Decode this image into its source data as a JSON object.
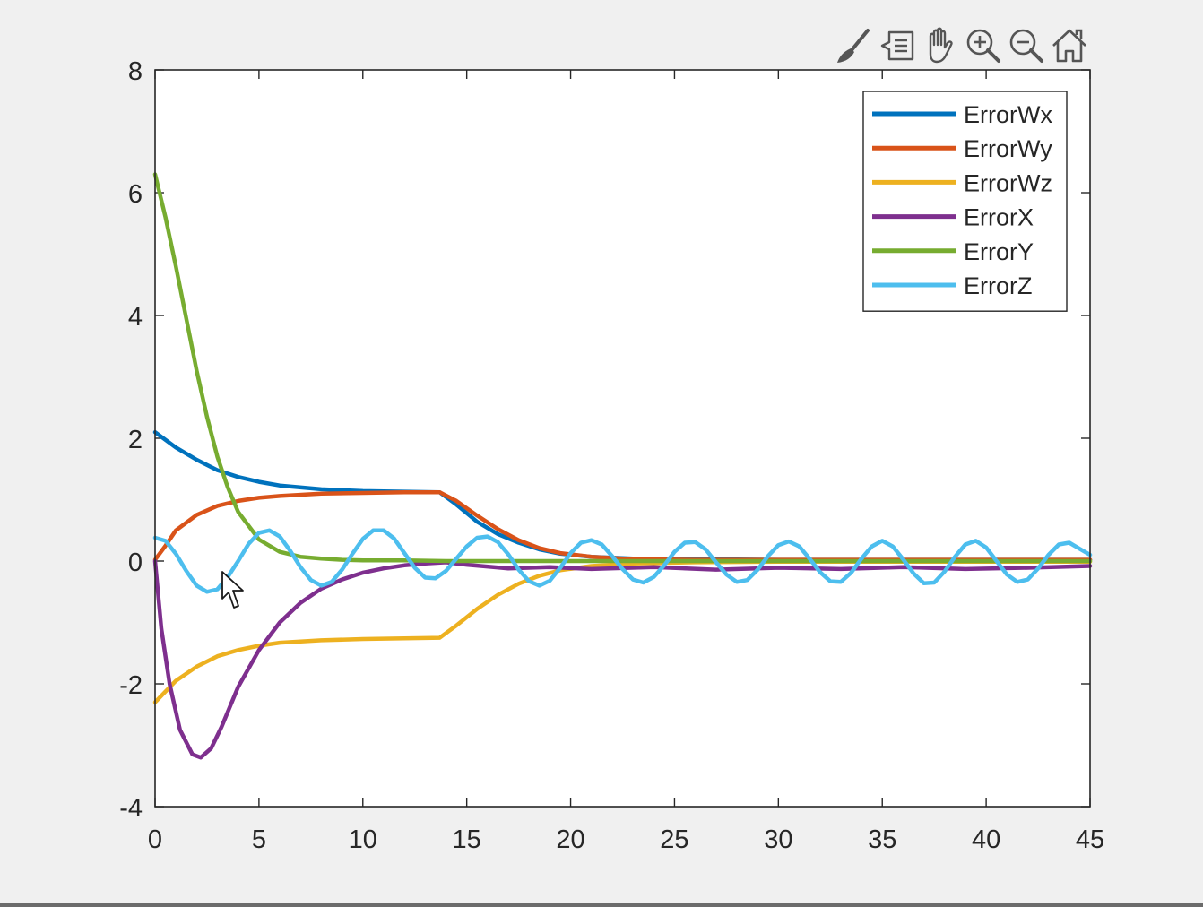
{
  "toolbar": {
    "tools": [
      {
        "name": "brush-icon"
      },
      {
        "name": "data-tips-icon"
      },
      {
        "name": "pan-hand-icon"
      },
      {
        "name": "zoom-in-icon"
      },
      {
        "name": "zoom-out-icon"
      },
      {
        "name": "home-icon"
      }
    ]
  },
  "chart_data": {
    "type": "line",
    "title": "",
    "xlabel": "",
    "ylabel": "",
    "xlim": [
      0,
      45
    ],
    "ylim": [
      -4,
      8
    ],
    "xticks": [
      0,
      5,
      10,
      15,
      20,
      25,
      30,
      35,
      40,
      45
    ],
    "yticks": [
      -4,
      -2,
      0,
      2,
      4,
      6,
      8
    ],
    "grid": false,
    "legend": "top-right",
    "series": [
      {
        "name": "ErrorWx",
        "color": "#0072BD",
        "x": [
          0,
          1,
          2,
          3,
          4,
          5,
          6,
          8,
          10,
          12,
          13.7,
          14.5,
          15.5,
          16.5,
          17.5,
          18.5,
          19.5,
          21,
          23,
          26,
          30,
          35,
          40,
          45
        ],
        "y": [
          2.1,
          1.85,
          1.65,
          1.48,
          1.37,
          1.29,
          1.23,
          1.17,
          1.14,
          1.13,
          1.12,
          0.92,
          0.64,
          0.44,
          0.3,
          0.19,
          0.12,
          0.07,
          0.04,
          0.03,
          0.02,
          0.02,
          0.02,
          0.02
        ]
      },
      {
        "name": "ErrorWy",
        "color": "#D95319",
        "x": [
          0,
          0.5,
          1,
          2,
          3,
          4,
          5,
          6,
          8,
          10,
          12,
          13.7,
          14.5,
          15.5,
          16.5,
          17.5,
          18.5,
          19.5,
          21,
          23,
          26,
          30,
          35,
          40,
          45
        ],
        "y": [
          0.02,
          0.25,
          0.5,
          0.75,
          0.9,
          0.98,
          1.03,
          1.06,
          1.1,
          1.11,
          1.12,
          1.12,
          0.98,
          0.74,
          0.52,
          0.34,
          0.21,
          0.13,
          0.07,
          0.03,
          0.02,
          0.02,
          0.02,
          0.02,
          0.02
        ]
      },
      {
        "name": "ErrorWz",
        "color": "#EDB120",
        "x": [
          0,
          1,
          2,
          3,
          4,
          5,
          6,
          8,
          10,
          12,
          13.7,
          14.5,
          15.5,
          16.5,
          17.5,
          18.5,
          19.5,
          21,
          23,
          26,
          30,
          35,
          40,
          45
        ],
        "y": [
          -2.3,
          -1.95,
          -1.72,
          -1.55,
          -1.45,
          -1.38,
          -1.33,
          -1.29,
          -1.27,
          -1.26,
          -1.25,
          -1.05,
          -0.78,
          -0.55,
          -0.37,
          -0.24,
          -0.15,
          -0.08,
          -0.04,
          -0.02,
          -0.01,
          -0.01,
          -0.01,
          -0.01
        ]
      },
      {
        "name": "ErrorX",
        "color": "#7E2F8E",
        "x": [
          0,
          0.3,
          0.7,
          1.2,
          1.8,
          2.2,
          2.7,
          3.2,
          4,
          5,
          6,
          7,
          8,
          9,
          10,
          11,
          12,
          13,
          14,
          15,
          17,
          19,
          21,
          24,
          27,
          30,
          33,
          36,
          39,
          42,
          45
        ],
        "y": [
          0,
          -1.1,
          -2.0,
          -2.75,
          -3.15,
          -3.2,
          -3.05,
          -2.7,
          -2.05,
          -1.45,
          -1.0,
          -0.68,
          -0.45,
          -0.3,
          -0.19,
          -0.12,
          -0.07,
          -0.04,
          -0.02,
          -0.06,
          -0.12,
          -0.1,
          -0.13,
          -0.1,
          -0.14,
          -0.11,
          -0.13,
          -0.1,
          -0.13,
          -0.11,
          -0.08
        ]
      },
      {
        "name": "ErrorY",
        "color": "#77AC30",
        "x": [
          0,
          0.5,
          1,
          1.5,
          2,
          2.5,
          3,
          3.5,
          4,
          5,
          6,
          7,
          8,
          9,
          10,
          12,
          14,
          16,
          20,
          25,
          30,
          35,
          40,
          45
        ],
        "y": [
          6.3,
          5.6,
          4.8,
          3.95,
          3.1,
          2.35,
          1.7,
          1.2,
          0.8,
          0.35,
          0.15,
          0.07,
          0.04,
          0.02,
          0.01,
          0.01,
          0.0,
          0.0,
          0.0,
          0.0,
          0.0,
          0.0,
          0.0,
          0.0
        ]
      },
      {
        "name": "ErrorZ",
        "color": "#4DBEEE",
        "x": [
          0,
          0.5,
          1,
          1.5,
          2,
          2.5,
          3,
          3.5,
          4,
          4.5,
          5,
          5.5,
          6,
          6.5,
          7,
          7.5,
          8,
          8.5,
          9,
          9.5,
          10,
          10.5,
          11,
          11.5,
          12,
          12.5,
          13,
          13.5,
          14,
          14.5,
          15,
          15.5,
          16,
          16.5,
          17,
          17.5,
          18,
          18.5,
          19,
          19.5,
          20,
          20.5,
          21,
          21.5,
          22,
          22.5,
          23,
          23.5,
          24,
          24.5,
          25,
          25.5,
          26,
          26.5,
          27,
          27.5,
          28,
          28.5,
          29,
          29.5,
          30,
          30.5,
          31,
          31.5,
          32,
          32.5,
          33,
          33.5,
          34,
          34.5,
          35,
          35.5,
          36,
          36.5,
          37,
          37.5,
          38,
          38.5,
          39,
          39.5,
          40,
          40.5,
          41,
          41.5,
          42,
          42.5,
          43,
          43.5,
          44,
          44.5,
          45
        ],
        "y": [
          0.38,
          0.33,
          0.12,
          -0.16,
          -0.4,
          -0.5,
          -0.46,
          -0.26,
          0.0,
          0.28,
          0.46,
          0.5,
          0.4,
          0.17,
          -0.1,
          -0.31,
          -0.4,
          -0.34,
          -0.14,
          0.12,
          0.36,
          0.5,
          0.5,
          0.37,
          0.13,
          -0.11,
          -0.27,
          -0.28,
          -0.16,
          0.04,
          0.24,
          0.38,
          0.4,
          0.31,
          0.11,
          -0.14,
          -0.33,
          -0.4,
          -0.32,
          -0.11,
          0.13,
          0.3,
          0.34,
          0.27,
          0.08,
          -0.13,
          -0.3,
          -0.35,
          -0.26,
          -0.07,
          0.15,
          0.3,
          0.31,
          0.19,
          -0.02,
          -0.22,
          -0.34,
          -0.31,
          -0.14,
          0.08,
          0.26,
          0.32,
          0.24,
          0.04,
          -0.18,
          -0.33,
          -0.34,
          -0.19,
          0.04,
          0.24,
          0.33,
          0.24,
          0.03,
          -0.2,
          -0.36,
          -0.35,
          -0.17,
          0.07,
          0.27,
          0.33,
          0.22,
          0.0,
          -0.22,
          -0.34,
          -0.3,
          -0.12,
          0.1,
          0.27,
          0.3,
          0.2,
          0.1
        ]
      }
    ]
  }
}
